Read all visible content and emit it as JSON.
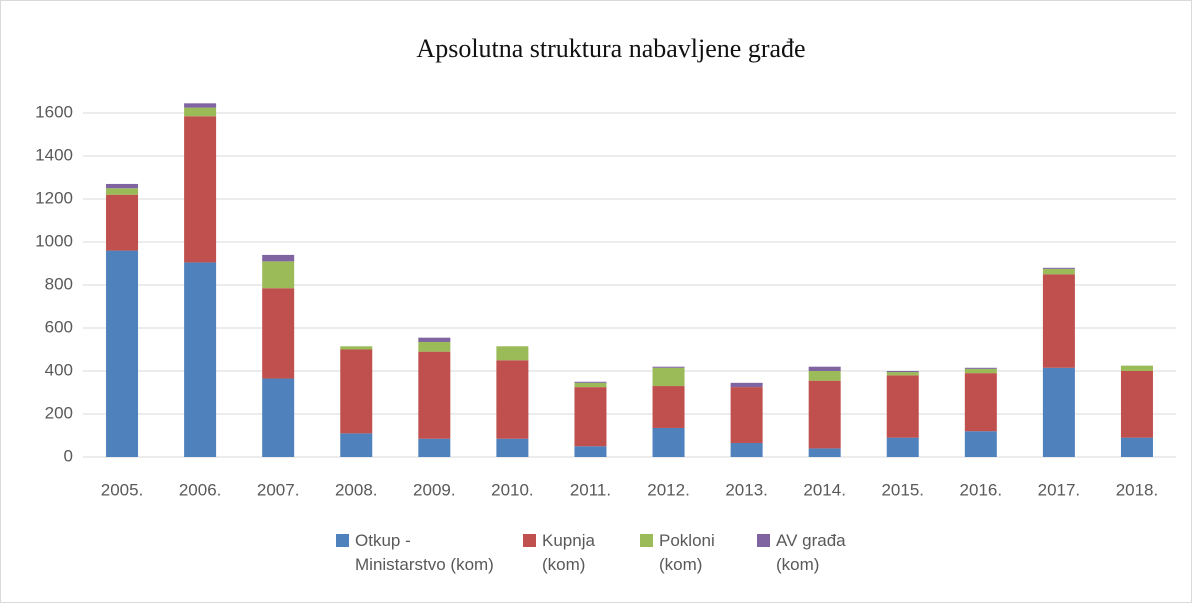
{
  "chart_data": {
    "type": "stacked_bar",
    "title": "Apsolutna struktura nabavljene građe",
    "categories": [
      "2005.",
      "2006.",
      "2007.",
      "2008.",
      "2009.",
      "2010.",
      "2011.",
      "2012.",
      "2013.",
      "2014.",
      "2015.",
      "2016.",
      "2017.",
      "2018."
    ],
    "series": [
      {
        "name": "Otkup - Ministarstvo (kom)",
        "color": "#4f81bd",
        "values": [
          960,
          905,
          365,
          110,
          85,
          85,
          50,
          135,
          65,
          40,
          90,
          120,
          415,
          90
        ]
      },
      {
        "name": "Kupnja (kom)",
        "color": "#c0504d",
        "values": [
          260,
          680,
          420,
          390,
          405,
          365,
          275,
          195,
          260,
          315,
          290,
          270,
          435,
          310
        ]
      },
      {
        "name": "Pokloni (kom)",
        "color": "#9bbb59",
        "values": [
          30,
          40,
          125,
          15,
          45,
          65,
          20,
          85,
          0,
          45,
          15,
          20,
          25,
          25
        ]
      },
      {
        "name": "AV građa (kom)",
        "color": "#8064a2",
        "values": [
          20,
          20,
          30,
          0,
          20,
          0,
          5,
          5,
          20,
          20,
          5,
          5,
          5,
          0
        ]
      }
    ],
    "ylim": [
      0,
      1600
    ],
    "yticks": [
      0,
      200,
      400,
      600,
      800,
      1000,
      1200,
      1400,
      1600
    ],
    "grid": true,
    "legend": "bottom"
  }
}
